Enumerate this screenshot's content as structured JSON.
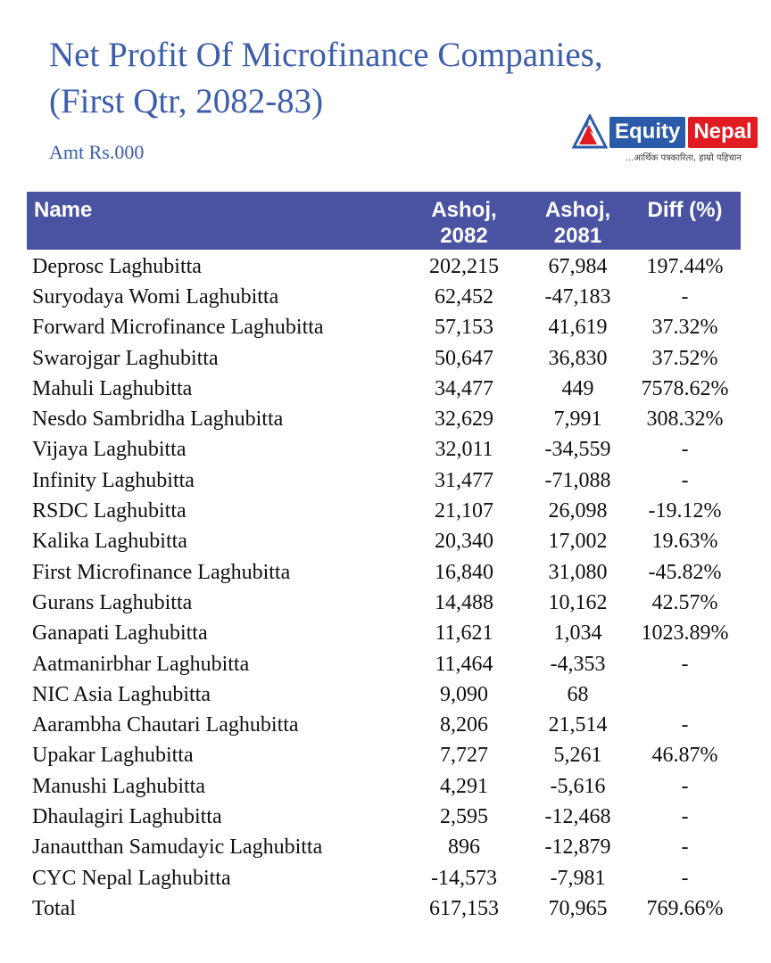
{
  "title": {
    "line1": "Net Profit Of Microfinance Companies,",
    "line2": "(First Qtr, 2082-83)"
  },
  "subtitle": "Amt Rs.000",
  "logo": {
    "brand_first": "Equity",
    "brand_second": "Nepal",
    "tagline": "...आर्थिक पत्रकारिता, हाम्रो पहिचान",
    "icon": "mountain-triangle-icon",
    "blue": "#2a5ba9",
    "red": "#e01b22"
  },
  "colors": {
    "title_blue": "#3c5da9",
    "header_bg": "#4a53a1",
    "header_text": "#ffffff",
    "body_text": "#101010"
  },
  "table": {
    "columns": [
      "Name",
      "Ashoj,\n2082",
      "Ashoj,\n2081",
      "Diff (%)"
    ]
  },
  "chart_data": {
    "type": "table",
    "title": "Net Profit Of Microfinance Companies, (First Qtr, 2082-83)",
    "unit": "Amt Rs.000",
    "columns": [
      "Name",
      "Ashoj, 2082",
      "Ashoj, 2081",
      "Diff (%)"
    ],
    "rows": [
      [
        "Deprosc Laghubitta",
        "202,215",
        "67,984",
        "197.44%"
      ],
      [
        "Suryodaya Womi Laghubitta",
        "62,452",
        "-47,183",
        "-"
      ],
      [
        "Forward Microfinance Laghubitta",
        "57,153",
        "41,619",
        "37.32%"
      ],
      [
        "Swarojgar Laghubitta",
        "50,647",
        "36,830",
        "37.52%"
      ],
      [
        "Mahuli Laghubitta",
        "34,477",
        "449",
        "7578.62%"
      ],
      [
        "Nesdo Sambridha Laghubitta",
        "32,629",
        "7,991",
        "308.32%"
      ],
      [
        "Vijaya Laghubitta",
        "32,011",
        "-34,559",
        "-"
      ],
      [
        "Infinity Laghubitta",
        "31,477",
        "-71,088",
        "-"
      ],
      [
        "RSDC Laghubitta",
        "21,107",
        "26,098",
        "-19.12%"
      ],
      [
        "Kalika Laghubitta",
        "20,340",
        "17,002",
        "19.63%"
      ],
      [
        "First Microfinance Laghubitta",
        "16,840",
        "31,080",
        "-45.82%"
      ],
      [
        "Gurans Laghubitta",
        "14,488",
        "10,162",
        "42.57%"
      ],
      [
        "Ganapati Laghubitta",
        "11,621",
        "1,034",
        "1023.89%"
      ],
      [
        "Aatmanirbhar Laghubitta",
        "11,464",
        "-4,353",
        "-"
      ],
      [
        "NIC Asia Laghubitta",
        "9,090",
        "68",
        ""
      ],
      [
        "Aarambha Chautari Laghubitta",
        "8,206",
        "21,514",
        "-"
      ],
      [
        "Upakar Laghubitta",
        "7,727",
        "5,261",
        "46.87%"
      ],
      [
        "Manushi Laghubitta",
        "4,291",
        "-5,616",
        "-"
      ],
      [
        "Dhaulagiri Laghubitta",
        "2,595",
        "-12,468",
        "-"
      ],
      [
        "Janautthan Samudayic Laghubitta",
        "896",
        "-12,879",
        "-"
      ],
      [
        "CYC Nepal Laghubitta",
        "-14,573",
        "-7,981",
        "-"
      ]
    ],
    "total_row": [
      "Total",
      "617,153",
      "70,965",
      "769.66%"
    ]
  }
}
